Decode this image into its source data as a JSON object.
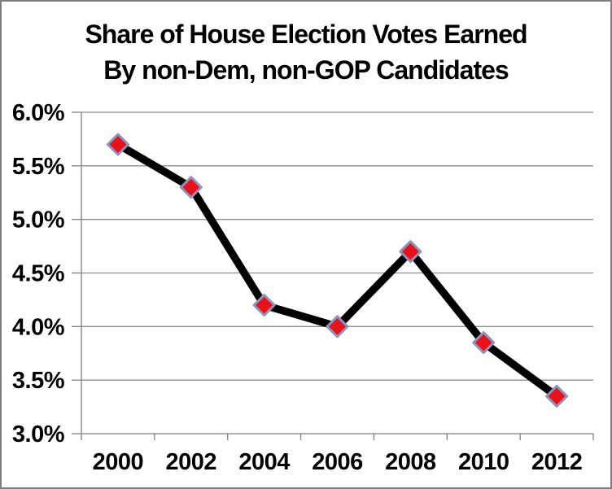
{
  "frame": {
    "background": "#ffffff",
    "border_color": "#7e7e7e"
  },
  "title": {
    "line1": "Share of House Election Votes Earned",
    "line2": "By non-Dem, non-GOP Candidates"
  },
  "chart_data": {
    "type": "line",
    "title": "Share of House Election Votes Earned By non-Dem, non-GOP Candidates",
    "categories": [
      "2000",
      "2002",
      "2004",
      "2006",
      "2008",
      "2010",
      "2012"
    ],
    "values": [
      5.7,
      5.3,
      4.2,
      4.0,
      4.7,
      3.85,
      3.35
    ],
    "value_unit": "%",
    "xlabel": "",
    "ylabel": "",
    "ylim": [
      3.0,
      6.0
    ],
    "ytick_step": 0.5,
    "ytick_labels": [
      "3.0%",
      "3.5%",
      "4.0%",
      "4.5%",
      "5.0%",
      "5.5%",
      "6.0%"
    ],
    "grid": true,
    "legend": "none",
    "line_color": "#000000",
    "line_width": 9.5,
    "marker": {
      "shape": "diamond",
      "fill": "#e8121a",
      "stroke": "#8f93bc",
      "stroke_width": 3,
      "half_size": 12.5
    },
    "gridline_color": "#8e8e8e",
    "axis_color": "#7f7f7f",
    "text_color": "#000000"
  }
}
